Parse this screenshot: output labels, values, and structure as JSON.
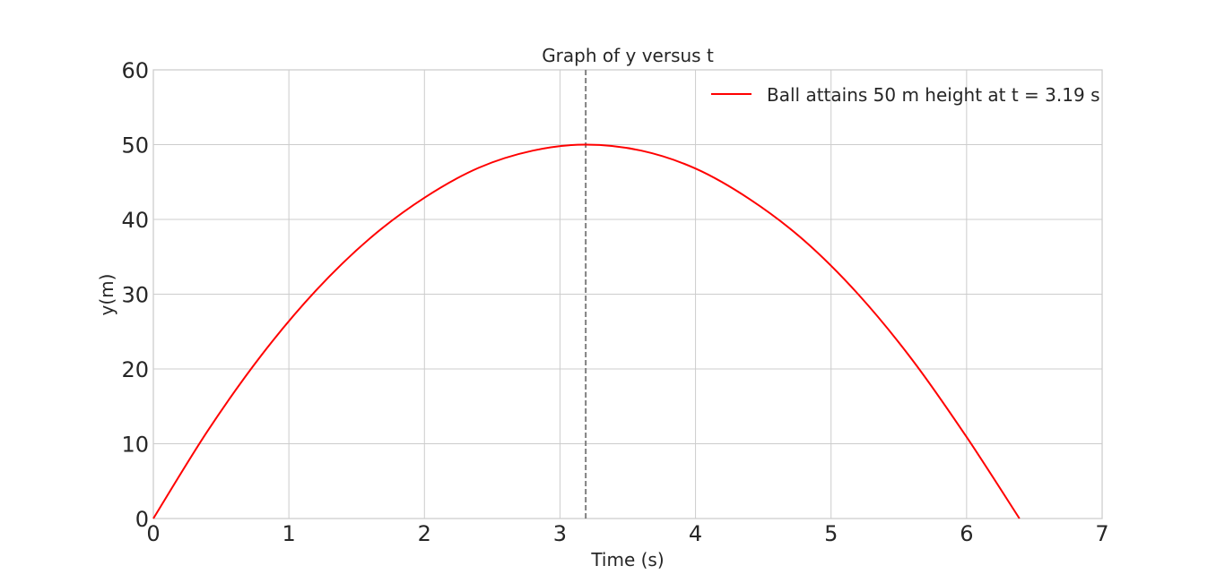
{
  "chart_data": {
    "type": "line",
    "title": "Graph of y versus t",
    "xlabel": "Time (s)",
    "ylabel": "y(m)",
    "xlim": [
      0,
      7
    ],
    "ylim": [
      0,
      60
    ],
    "x_ticks": [
      "0",
      "1",
      "2",
      "3",
      "4",
      "5",
      "6",
      "7"
    ],
    "y_ticks": [
      "0",
      "10",
      "20",
      "30",
      "40",
      "50",
      "60"
    ],
    "grid": true,
    "legend_position": "top-right",
    "series": [
      {
        "name": "Ball attains 50 m height at t = 3.19 s",
        "color": "#ff0000",
        "x": [
          0,
          0.4,
          0.8,
          1.2,
          1.6,
          2.0,
          2.4,
          2.8,
          3.19,
          3.6,
          4.0,
          4.4,
          4.8,
          5.2,
          5.6,
          6.0,
          6.39
        ],
        "y": [
          0,
          11.7,
          21.9,
          30.5,
          37.5,
          42.9,
          46.9,
          49.2,
          50.0,
          49.2,
          46.8,
          42.7,
          37.2,
          30.0,
          21.2,
          10.9,
          0
        ]
      }
    ],
    "vertical_line": {
      "x": 3.19,
      "color": "#808080",
      "style": "dashed"
    }
  }
}
